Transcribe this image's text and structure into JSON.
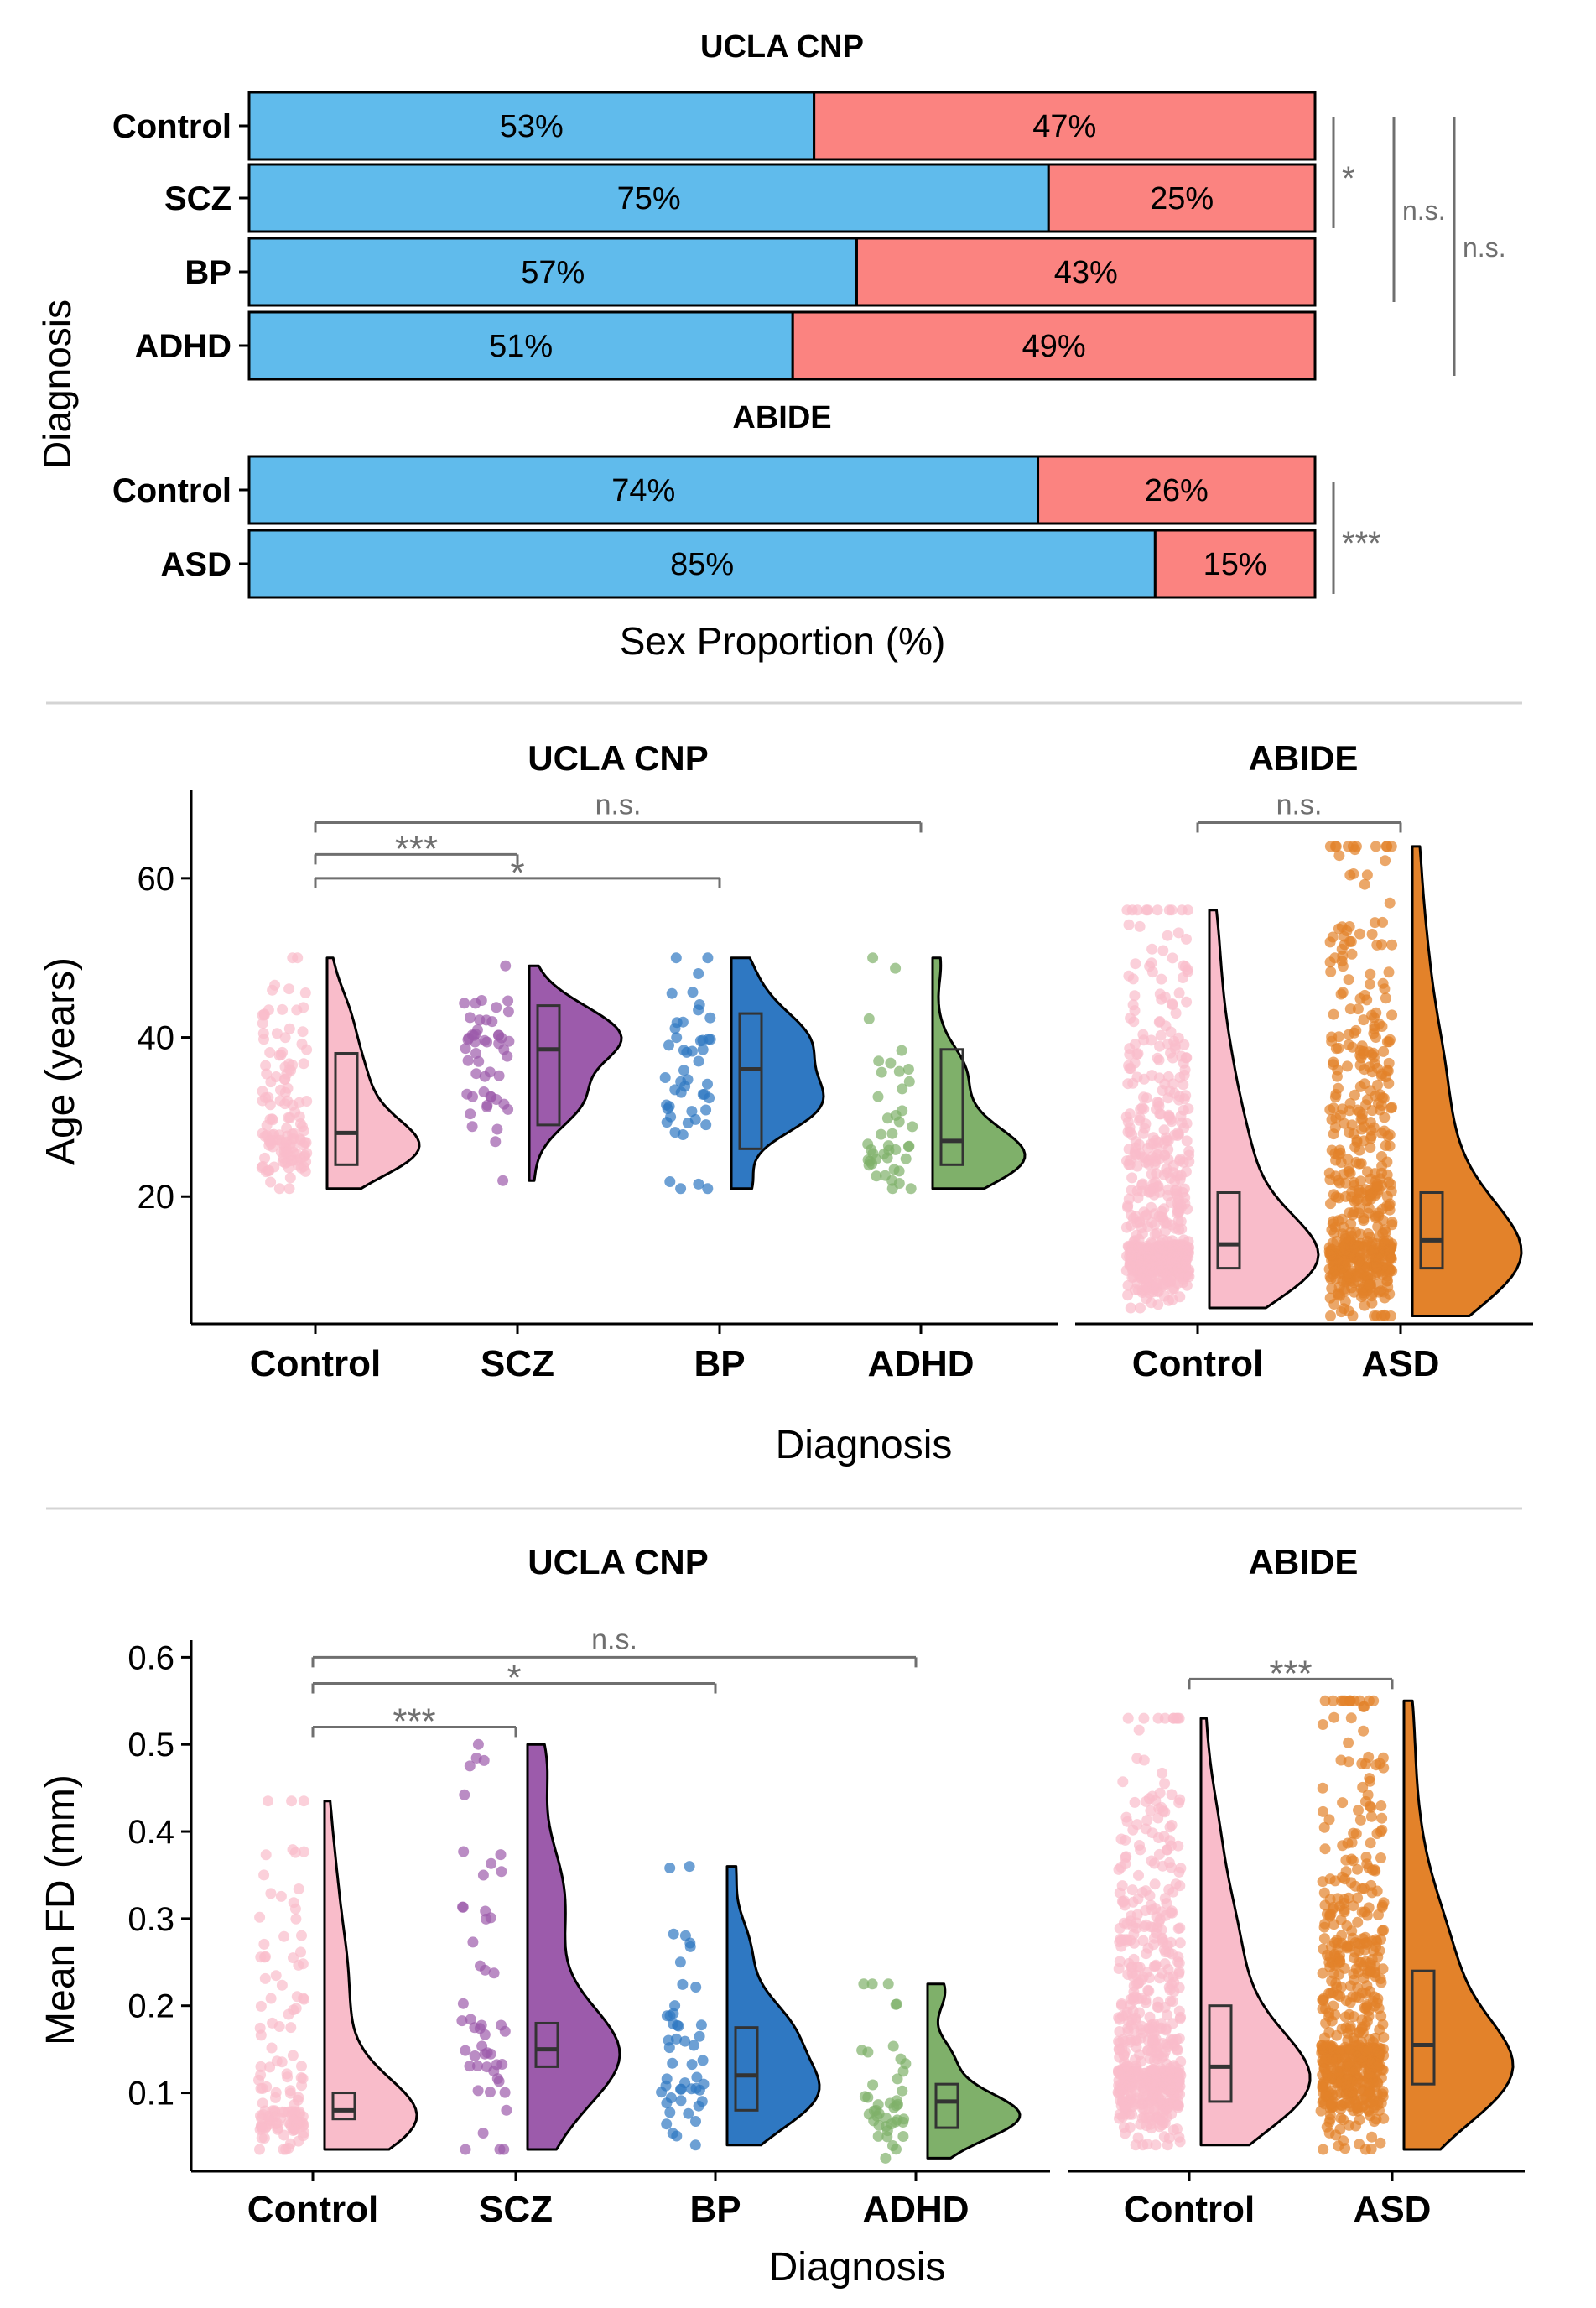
{
  "colors": {
    "male": "#60BBEC",
    "female": "#FB8380",
    "control_cnp": "#F9BCCA",
    "scz": "#9C5BAB",
    "bp": "#2F78C2",
    "adhd": "#7FB06A",
    "control_abide": "#F9BCCA",
    "asd": "#E3822A",
    "sig": "#6f6f6f",
    "divider": "#d4d4d4"
  },
  "chart_data": [
    {
      "type": "bar",
      "subtype": "stacked-horizontal-percent",
      "xlabel": "Sex Proportion (%)",
      "ylabel": "Diagnosis",
      "panels": [
        {
          "title": "UCLA CNP",
          "categories": [
            "Control",
            "SCZ",
            "BP",
            "ADHD"
          ],
          "series": [
            {
              "values": [
                53,
                75,
                57,
                51
              ],
              "labels": [
                "53%",
                "75%",
                "57%",
                "51%"
              ],
              "color": "#60BBEC"
            },
            {
              "values": [
                47,
                25,
                43,
                49
              ],
              "labels": [
                "47%",
                "25%",
                "43%",
                "49%"
              ],
              "color": "#FB8380"
            }
          ],
          "significance": [
            {
              "from": "Control",
              "to": "SCZ",
              "label": "*"
            },
            {
              "from": "Control",
              "to": "BP",
              "label": "n.s."
            },
            {
              "from": "Control",
              "to": "ADHD",
              "label": "n.s."
            }
          ]
        },
        {
          "title": "ABIDE",
          "categories": [
            "Control",
            "ASD"
          ],
          "series": [
            {
              "values": [
                74,
                85
              ],
              "labels": [
                "74%",
                "85%"
              ],
              "color": "#60BBEC"
            },
            {
              "values": [
                26,
                15
              ],
              "labels": [
                "26%",
                "15%"
              ],
              "color": "#FB8380"
            }
          ],
          "significance": [
            {
              "from": "Control",
              "to": "ASD",
              "label": "***"
            }
          ]
        }
      ]
    },
    {
      "type": "scatter",
      "subtype": "raincloud",
      "ylabel": "Age (years)",
      "xlabel": "Diagnosis",
      "panels": [
        {
          "title": "UCLA CNP",
          "ylim": [
            4,
            70
          ],
          "yticks": [
            20,
            40,
            60
          ],
          "yticklabels": [
            "20",
            "40",
            "60"
          ],
          "categories": [
            "Control",
            "SCZ",
            "BP",
            "ADHD"
          ],
          "groups": [
            {
              "name": "Control",
              "color": "#F9BCCA",
              "n": 130,
              "min": 21,
              "max": 50,
              "q1": 24,
              "median": 28,
              "q3": 38,
              "mode": 25
            },
            {
              "name": "SCZ",
              "color": "#9C5BAB",
              "n": 50,
              "min": 22,
              "max": 49,
              "q1": 29,
              "median": 38.5,
              "q3": 44,
              "mode": 43
            },
            {
              "name": "BP",
              "color": "#2F78C2",
              "n": 49,
              "min": 21,
              "max": 50,
              "q1": 26,
              "median": 36,
              "q3": 43,
              "mode": 39
            },
            {
              "name": "ADHD",
              "color": "#7FB06A",
              "n": 43,
              "min": 21,
              "max": 50,
              "q1": 24,
              "median": 27,
              "q3": 38.5,
              "mode": 25
            }
          ],
          "significance": [
            {
              "from": "Control",
              "to": "SCZ",
              "label": "***",
              "y": 63
            },
            {
              "from": "Control",
              "to": "BP",
              "label": "*",
              "y": 60
            },
            {
              "from": "Control",
              "to": "ADHD",
              "label": "n.s.",
              "y": 67
            }
          ]
        },
        {
          "title": "ABIDE",
          "ylim": [
            4,
            70
          ],
          "categories": [
            "Control",
            "ASD"
          ],
          "groups": [
            {
              "name": "Control",
              "color": "#F9BCCA",
              "n": 570,
              "min": 6,
              "max": 56,
              "q1": 11,
              "median": 14,
              "q3": 20.5,
              "mode": 11
            },
            {
              "name": "ASD",
              "color": "#E3822A",
              "n": 540,
              "min": 5,
              "max": 64,
              "q1": 11,
              "median": 14.5,
              "q3": 20.5,
              "mode": 12
            }
          ],
          "significance": [
            {
              "from": "Control",
              "to": "ASD",
              "label": "n.s.",
              "y": 67
            }
          ]
        }
      ]
    },
    {
      "type": "scatter",
      "subtype": "raincloud",
      "ylabel": "Mean FD (mm)",
      "xlabel": "Diagnosis",
      "panels": [
        {
          "title": "UCLA CNP",
          "ylim": [
            0.01,
            0.61
          ],
          "yticks": [
            0.1,
            0.2,
            0.3,
            0.4,
            0.5,
            0.6
          ],
          "yticklabels": [
            "0.1",
            "0.2",
            "0.3",
            "0.4",
            "0.5",
            "0.6"
          ],
          "categories": [
            "Control",
            "SCZ",
            "BP",
            "ADHD"
          ],
          "groups": [
            {
              "name": "Control",
              "color": "#F9BCCA",
              "n": 130,
              "min": 0.035,
              "max": 0.435,
              "q1": 0.07,
              "median": 0.08,
              "q3": 0.1,
              "mode": 0.07
            },
            {
              "name": "SCZ",
              "color": "#9C5BAB",
              "n": 50,
              "min": 0.035,
              "max": 0.5,
              "q1": 0.13,
              "median": 0.15,
              "q3": 0.18,
              "mode": 0.14
            },
            {
              "name": "BP",
              "color": "#2F78C2",
              "n": 49,
              "min": 0.04,
              "max": 0.36,
              "q1": 0.08,
              "median": 0.12,
              "q3": 0.175,
              "mode": 0.1
            },
            {
              "name": "ADHD",
              "color": "#7FB06A",
              "n": 43,
              "min": 0.025,
              "max": 0.225,
              "q1": 0.06,
              "median": 0.09,
              "q3": 0.11,
              "mode": 0.08
            }
          ],
          "significance": [
            {
              "from": "Control",
              "to": "SCZ",
              "label": "***",
              "y": 0.52
            },
            {
              "from": "Control",
              "to": "BP",
              "label": "*",
              "y": 0.57
            },
            {
              "from": "Control",
              "to": "ADHD",
              "label": "n.s.",
              "y": 0.6
            }
          ]
        },
        {
          "title": "ABIDE",
          "ylim": [
            0.01,
            0.61
          ],
          "categories": [
            "Control",
            "ASD"
          ],
          "groups": [
            {
              "name": "Control",
              "color": "#F9BCCA",
              "n": 560,
              "min": 0.04,
              "max": 0.53,
              "q1": 0.09,
              "median": 0.13,
              "q3": 0.2,
              "mode": 0.1
            },
            {
              "name": "ASD",
              "color": "#E3822A",
              "n": 560,
              "min": 0.035,
              "max": 0.55,
              "q1": 0.11,
              "median": 0.155,
              "q3": 0.24,
              "mode": 0.13
            }
          ],
          "significance": [
            {
              "from": "Control",
              "to": "ASD",
              "label": "***",
              "y": 0.575
            }
          ]
        }
      ]
    }
  ]
}
